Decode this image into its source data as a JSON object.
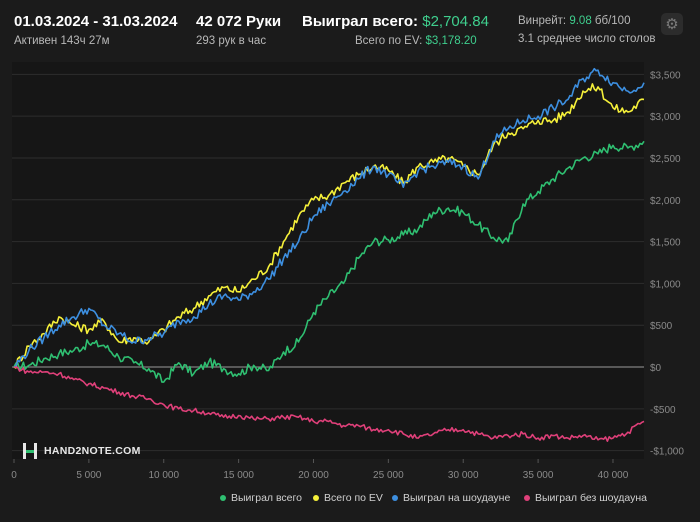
{
  "header": {
    "date_range": "01.03.2024 - 31.03.2024",
    "active": "Активен 143ч 27м",
    "hands": "42 072 Руки",
    "hands_per_hour": "293 рук в час",
    "won_total_label": "Выиграл всего:",
    "won_total_value": "$2,704.84",
    "ev_total_label": "Всего по EV:",
    "ev_total_value": "$3,178.20",
    "winrate_label": "Винрейт:",
    "winrate_value": "9.08",
    "winrate_unit": "бб/100",
    "tables": "3.1 среднее число столов"
  },
  "logo": {
    "text": "HAND2NOTE.COM"
  },
  "colors": {
    "won": "#2fbf71",
    "ev": "#f5f03a",
    "showdown": "#3d8fe0",
    "nonshowdown": "#e0407a",
    "grid": "#2e2e2e",
    "zero": "#9a9a9a"
  },
  "chart_data": {
    "type": "line",
    "title": "",
    "xlabel": "",
    "ylabel": "",
    "xlim": [
      0,
      42072
    ],
    "ylim": [
      -1100,
      3600
    ],
    "x_ticks": [
      0,
      5000,
      10000,
      15000,
      20000,
      25000,
      30000,
      35000,
      40000
    ],
    "x_tick_labels": [
      "0",
      "5 000",
      "10 000",
      "15 000",
      "20 000",
      "25 000",
      "30 000",
      "35 000",
      "40 000"
    ],
    "y_ticks": [
      3500,
      3000,
      2500,
      2000,
      1500,
      1000,
      500,
      0,
      -500,
      -1000
    ],
    "y_tick_labels": [
      "$3,500",
      "$3,000",
      "$2,500",
      "$2,000",
      "$1,500",
      "$1,000",
      "$500",
      "$0",
      "-$500",
      "-$1,000"
    ],
    "series": [
      {
        "name": "Выиграл всего",
        "color": "#2fbf71",
        "x": [
          0,
          1000,
          2000,
          3000,
          4000,
          5000,
          6000,
          7000,
          8000,
          9000,
          10000,
          11000,
          12000,
          13000,
          14000,
          15000,
          16000,
          17000,
          18000,
          19000,
          20000,
          21000,
          22000,
          23000,
          24000,
          25000,
          26000,
          27000,
          28000,
          29000,
          30000,
          31000,
          32000,
          33000,
          34000,
          35000,
          36000,
          37000,
          38000,
          39000,
          40000,
          41000,
          42072
        ],
        "y": [
          0,
          20,
          100,
          160,
          200,
          280,
          260,
          120,
          50,
          -20,
          -180,
          50,
          -80,
          60,
          -20,
          -80,
          20,
          -40,
          180,
          300,
          650,
          850,
          1000,
          1300,
          1500,
          1520,
          1580,
          1650,
          1850,
          1900,
          1850,
          1700,
          1550,
          1500,
          1950,
          2100,
          2250,
          2380,
          2500,
          2550,
          2650,
          2620,
          2700
        ]
      },
      {
        "name": "Всего по EV",
        "color": "#f5f03a",
        "x": [
          0,
          1000,
          2000,
          3000,
          4000,
          5000,
          6000,
          7000,
          8000,
          9000,
          10000,
          11000,
          12000,
          13000,
          14000,
          15000,
          16000,
          17000,
          18000,
          19000,
          20000,
          21000,
          22000,
          23000,
          24000,
          25000,
          26000,
          27000,
          28000,
          29000,
          30000,
          31000,
          32000,
          33000,
          34000,
          35000,
          36000,
          37000,
          38000,
          39000,
          40000,
          41000,
          42072
        ],
        "y": [
          0,
          250,
          400,
          600,
          500,
          450,
          550,
          300,
          350,
          300,
          450,
          600,
          700,
          850,
          950,
          900,
          1050,
          1200,
          1500,
          1800,
          2000,
          2050,
          2200,
          2300,
          2400,
          2350,
          2200,
          2400,
          2450,
          2500,
          2400,
          2300,
          2650,
          2800,
          2850,
          2950,
          2950,
          3050,
          3300,
          3350,
          3100,
          3050,
          3200
        ]
      },
      {
        "name": "Выиграл на шоудауне",
        "color": "#3d8fe0",
        "x": [
          0,
          1000,
          2000,
          3000,
          4000,
          5000,
          6000,
          7000,
          8000,
          9000,
          10000,
          11000,
          12000,
          13000,
          14000,
          15000,
          16000,
          17000,
          18000,
          19000,
          20000,
          21000,
          22000,
          23000,
          24000,
          25000,
          26000,
          27000,
          28000,
          29000,
          30000,
          31000,
          32000,
          33000,
          34000,
          35000,
          36000,
          37000,
          38000,
          39000,
          40000,
          41000,
          42072
        ],
        "y": [
          0,
          200,
          350,
          500,
          600,
          700,
          500,
          400,
          300,
          350,
          400,
          550,
          600,
          750,
          850,
          800,
          900,
          1050,
          1300,
          1500,
          1800,
          1950,
          2100,
          2250,
          2400,
          2300,
          2150,
          2350,
          2400,
          2450,
          2400,
          2250,
          2700,
          2850,
          2950,
          3000,
          3100,
          3200,
          3450,
          3550,
          3400,
          3300,
          3400
        ]
      },
      {
        "name": "Выиграл без шоудауна",
        "color": "#e0407a",
        "x": [
          0,
          1000,
          2000,
          3000,
          4000,
          5000,
          6000,
          7000,
          8000,
          9000,
          10000,
          11000,
          12000,
          13000,
          14000,
          15000,
          16000,
          17000,
          18000,
          19000,
          20000,
          21000,
          22000,
          23000,
          24000,
          25000,
          26000,
          27000,
          28000,
          29000,
          30000,
          31000,
          32000,
          33000,
          34000,
          35000,
          36000,
          37000,
          38000,
          39000,
          40000,
          41000,
          42072
        ],
        "y": [
          0,
          -60,
          -60,
          -80,
          -150,
          -200,
          -250,
          -300,
          -350,
          -380,
          -450,
          -500,
          -520,
          -550,
          -600,
          -580,
          -620,
          -620,
          -600,
          -600,
          -650,
          -650,
          -700,
          -700,
          -750,
          -750,
          -800,
          -850,
          -800,
          -750,
          -750,
          -800,
          -850,
          -820,
          -800,
          -850,
          -820,
          -850,
          -820,
          -870,
          -850,
          -780,
          -650
        ]
      }
    ],
    "legend_position": "bottom"
  }
}
